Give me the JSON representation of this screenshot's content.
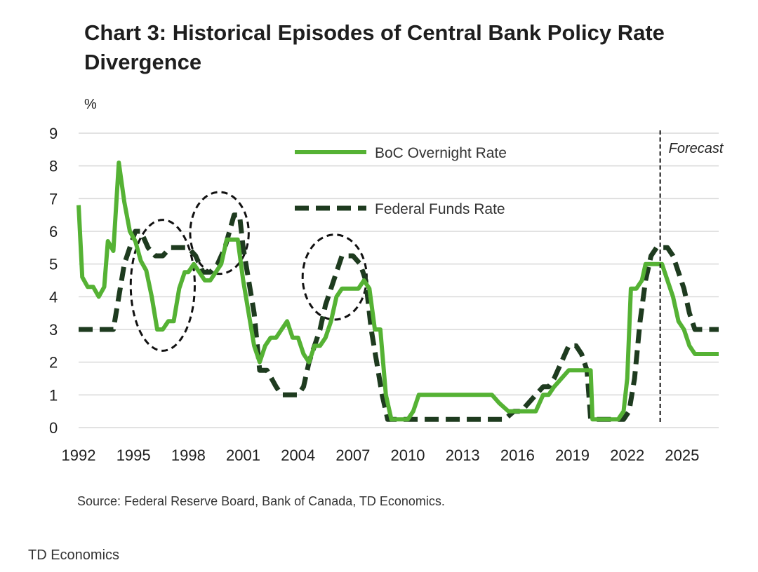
{
  "title": "Chart 3: Historical Episodes of Central Bank Policy Rate Divergence",
  "source": "Source: Federal Reserve Board, Bank of Canada, TD Economics.",
  "credit": "TD Economics",
  "colors": {
    "boc": "#55b234",
    "fed": "#1e3b1f",
    "grid": "#d9d9d9",
    "annotation": "#111111"
  },
  "chart_data": {
    "type": "line",
    "title": "Chart 3: Historical Episodes of Central Bank Policy Rate Divergence",
    "ylabel": "%",
    "xlabel": "",
    "ylim": [
      0,
      9
    ],
    "xlim": [
      1992,
      2027
    ],
    "yticks": [
      0,
      1,
      2,
      3,
      4,
      5,
      6,
      7,
      8,
      9
    ],
    "xticks": [
      "1992",
      "1995",
      "1998",
      "2001",
      "2004",
      "2007",
      "2010",
      "2013",
      "2016",
      "2019",
      "2022",
      "2025"
    ],
    "forecast_start": 2023.8,
    "forecast_label": "Forecast",
    "legend_position": "top-center",
    "series": [
      {
        "name": "BoC Overnight Rate",
        "style": "solid",
        "x": [
          1992.0,
          1992.2,
          1992.5,
          1992.8,
          1993.1,
          1993.4,
          1993.6,
          1993.9,
          1994.0,
          1994.2,
          1994.5,
          1994.8,
          1995.1,
          1995.4,
          1995.7,
          1996.0,
          1996.3,
          1996.6,
          1996.9,
          1997.2,
          1997.5,
          1997.8,
          1998.0,
          1998.3,
          1998.6,
          1998.9,
          1999.2,
          1999.5,
          1999.8,
          2000.1,
          2000.4,
          2000.7,
          2001.0,
          2001.3,
          2001.6,
          2001.9,
          2002.2,
          2002.5,
          2002.8,
          2003.1,
          2003.4,
          2003.7,
          2004.0,
          2004.3,
          2004.6,
          2004.9,
          2005.2,
          2005.5,
          2005.8,
          2006.1,
          2006.4,
          2006.7,
          2007.0,
          2007.3,
          2007.6,
          2007.9,
          2008.2,
          2008.5,
          2008.8,
          2009.1,
          2009.4,
          2009.7,
          2010.0,
          2010.3,
          2010.6,
          2011.0,
          2012.0,
          2013.0,
          2014.0,
          2014.6,
          2015.0,
          2015.5,
          2016.0,
          2016.5,
          2017.0,
          2017.4,
          2017.7,
          2018.0,
          2018.4,
          2018.8,
          2019.2,
          2019.6,
          2020.0,
          2020.1,
          2020.4,
          2021.0,
          2021.5,
          2021.8,
          2022.0,
          2022.2,
          2022.5,
          2022.8,
          2023.0,
          2023.3,
          2023.6,
          2023.9,
          2024.2,
          2024.5,
          2024.8,
          2025.1,
          2025.4,
          2025.7,
          2026.0,
          2026.5,
          2027.0
        ],
        "y": [
          6.8,
          4.6,
          4.3,
          4.3,
          4.0,
          4.3,
          5.7,
          5.4,
          6.3,
          8.1,
          6.9,
          6.0,
          5.7,
          5.1,
          4.8,
          4.0,
          3.0,
          3.0,
          3.25,
          3.25,
          4.25,
          4.75,
          4.75,
          5.0,
          4.75,
          4.5,
          4.5,
          4.75,
          5.0,
          5.75,
          5.75,
          5.75,
          4.5,
          3.5,
          2.5,
          2.0,
          2.5,
          2.75,
          2.75,
          3.0,
          3.25,
          2.75,
          2.75,
          2.25,
          2.0,
          2.5,
          2.5,
          2.75,
          3.25,
          4.0,
          4.25,
          4.25,
          4.25,
          4.25,
          4.5,
          4.25,
          3.0,
          3.0,
          1.0,
          0.25,
          0.25,
          0.25,
          0.25,
          0.5,
          1.0,
          1.0,
          1.0,
          1.0,
          1.0,
          1.0,
          0.75,
          0.5,
          0.5,
          0.5,
          0.5,
          1.0,
          1.0,
          1.25,
          1.5,
          1.75,
          1.75,
          1.75,
          1.75,
          0.25,
          0.25,
          0.25,
          0.25,
          0.5,
          1.5,
          4.25,
          4.25,
          4.5,
          5.0,
          5.0,
          5.0,
          5.0,
          4.5,
          4.0,
          3.25,
          3.0,
          2.5,
          2.25,
          2.25,
          2.25,
          2.25
        ]
      },
      {
        "name": "Federal Funds Rate",
        "style": "dashed",
        "x": [
          1992.0,
          1993.0,
          1993.4,
          1993.9,
          1994.2,
          1994.5,
          1994.8,
          1995.1,
          1995.4,
          1995.8,
          1996.2,
          1996.6,
          1997.0,
          1997.6,
          1998.0,
          1998.4,
          1998.8,
          1999.2,
          1999.6,
          2000.0,
          2000.5,
          2000.8,
          2001.0,
          2001.3,
          2001.6,
          2001.9,
          2002.3,
          2002.8,
          2003.1,
          2003.5,
          2004.0,
          2004.3,
          2004.6,
          2004.9,
          2005.2,
          2005.5,
          2005.8,
          2006.1,
          2006.4,
          2006.7,
          2007.0,
          2007.4,
          2007.7,
          2008.0,
          2008.3,
          2008.6,
          2008.9,
          2009.5,
          2010.0,
          2012.0,
          2014.0,
          2015.0,
          2015.3,
          2015.8,
          2016.2,
          2016.6,
          2017.0,
          2017.4,
          2017.7,
          2018.0,
          2018.4,
          2018.8,
          2019.2,
          2019.5,
          2019.8,
          2020.0,
          2020.2,
          2020.5,
          2021.0,
          2021.8,
          2022.1,
          2022.4,
          2022.7,
          2023.0,
          2023.3,
          2023.6,
          2023.9,
          2024.2,
          2024.5,
          2024.8,
          2025.1,
          2025.4,
          2025.7,
          2026.0,
          2026.5,
          2027.0
        ],
        "y": [
          3.0,
          3.0,
          3.0,
          3.0,
          4.0,
          5.0,
          5.5,
          6.0,
          6.0,
          5.5,
          5.25,
          5.25,
          5.5,
          5.5,
          5.5,
          5.25,
          4.75,
          4.75,
          5.0,
          5.5,
          6.5,
          6.5,
          5.5,
          4.5,
          3.5,
          1.75,
          1.75,
          1.25,
          1.0,
          1.0,
          1.0,
          1.25,
          2.0,
          2.5,
          3.0,
          3.75,
          4.25,
          4.75,
          5.25,
          5.25,
          5.25,
          5.0,
          4.5,
          3.0,
          2.0,
          1.0,
          0.25,
          0.25,
          0.25,
          0.25,
          0.25,
          0.25,
          0.25,
          0.5,
          0.5,
          0.75,
          1.0,
          1.25,
          1.25,
          1.5,
          2.0,
          2.5,
          2.5,
          2.25,
          1.75,
          0.25,
          0.25,
          0.25,
          0.25,
          0.25,
          0.5,
          1.5,
          3.25,
          4.5,
          5.25,
          5.5,
          5.5,
          5.5,
          5.25,
          4.75,
          4.25,
          3.5,
          3.0,
          3.0,
          3.0,
          3.0
        ]
      }
    ]
  }
}
